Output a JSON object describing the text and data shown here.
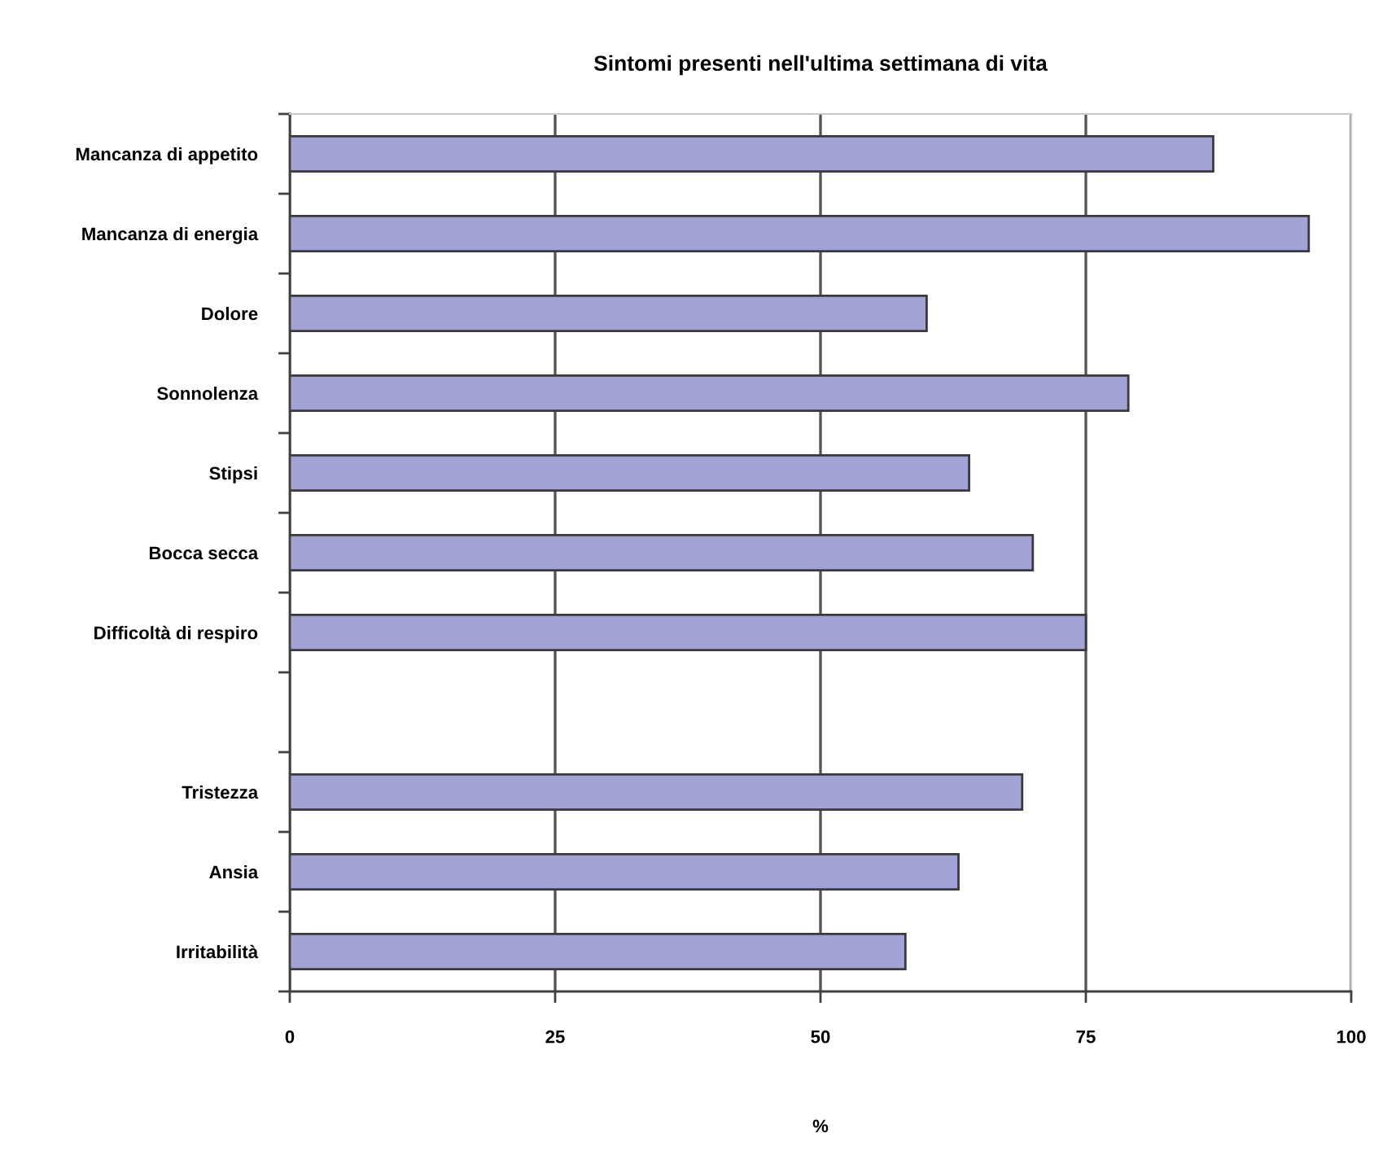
{
  "chart_data": {
    "type": "bar",
    "orientation": "horizontal",
    "title": "Sintomi presenti nell'ultima settimana di vita",
    "xlabel": "%",
    "categories": [
      "Mancanza di appetito",
      "Mancanza di energia",
      "Dolore",
      "Sonnolenza",
      "Stipsi",
      "Bocca secca",
      "Difficoltà di respiro",
      null,
      "Tristezza",
      "Ansia",
      "Irritabilità"
    ],
    "values": [
      87,
      96,
      60,
      79,
      64,
      70,
      75,
      null,
      69,
      63,
      58
    ],
    "color": "#a3a3d6",
    "xlim": [
      0,
      100
    ],
    "xticks": [
      0,
      25,
      50,
      75,
      100
    ],
    "grid": "x",
    "legend": false
  }
}
